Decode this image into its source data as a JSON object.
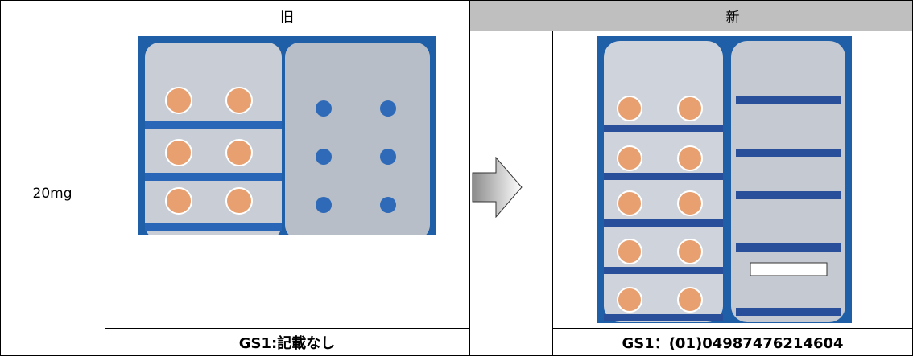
{
  "table": {
    "header": {
      "old": "旧",
      "new": "新"
    },
    "row_label": "20mg",
    "footer": {
      "old": "GS1:記載なし",
      "new": "GS1：(01)04987476214604"
    }
  }
}
